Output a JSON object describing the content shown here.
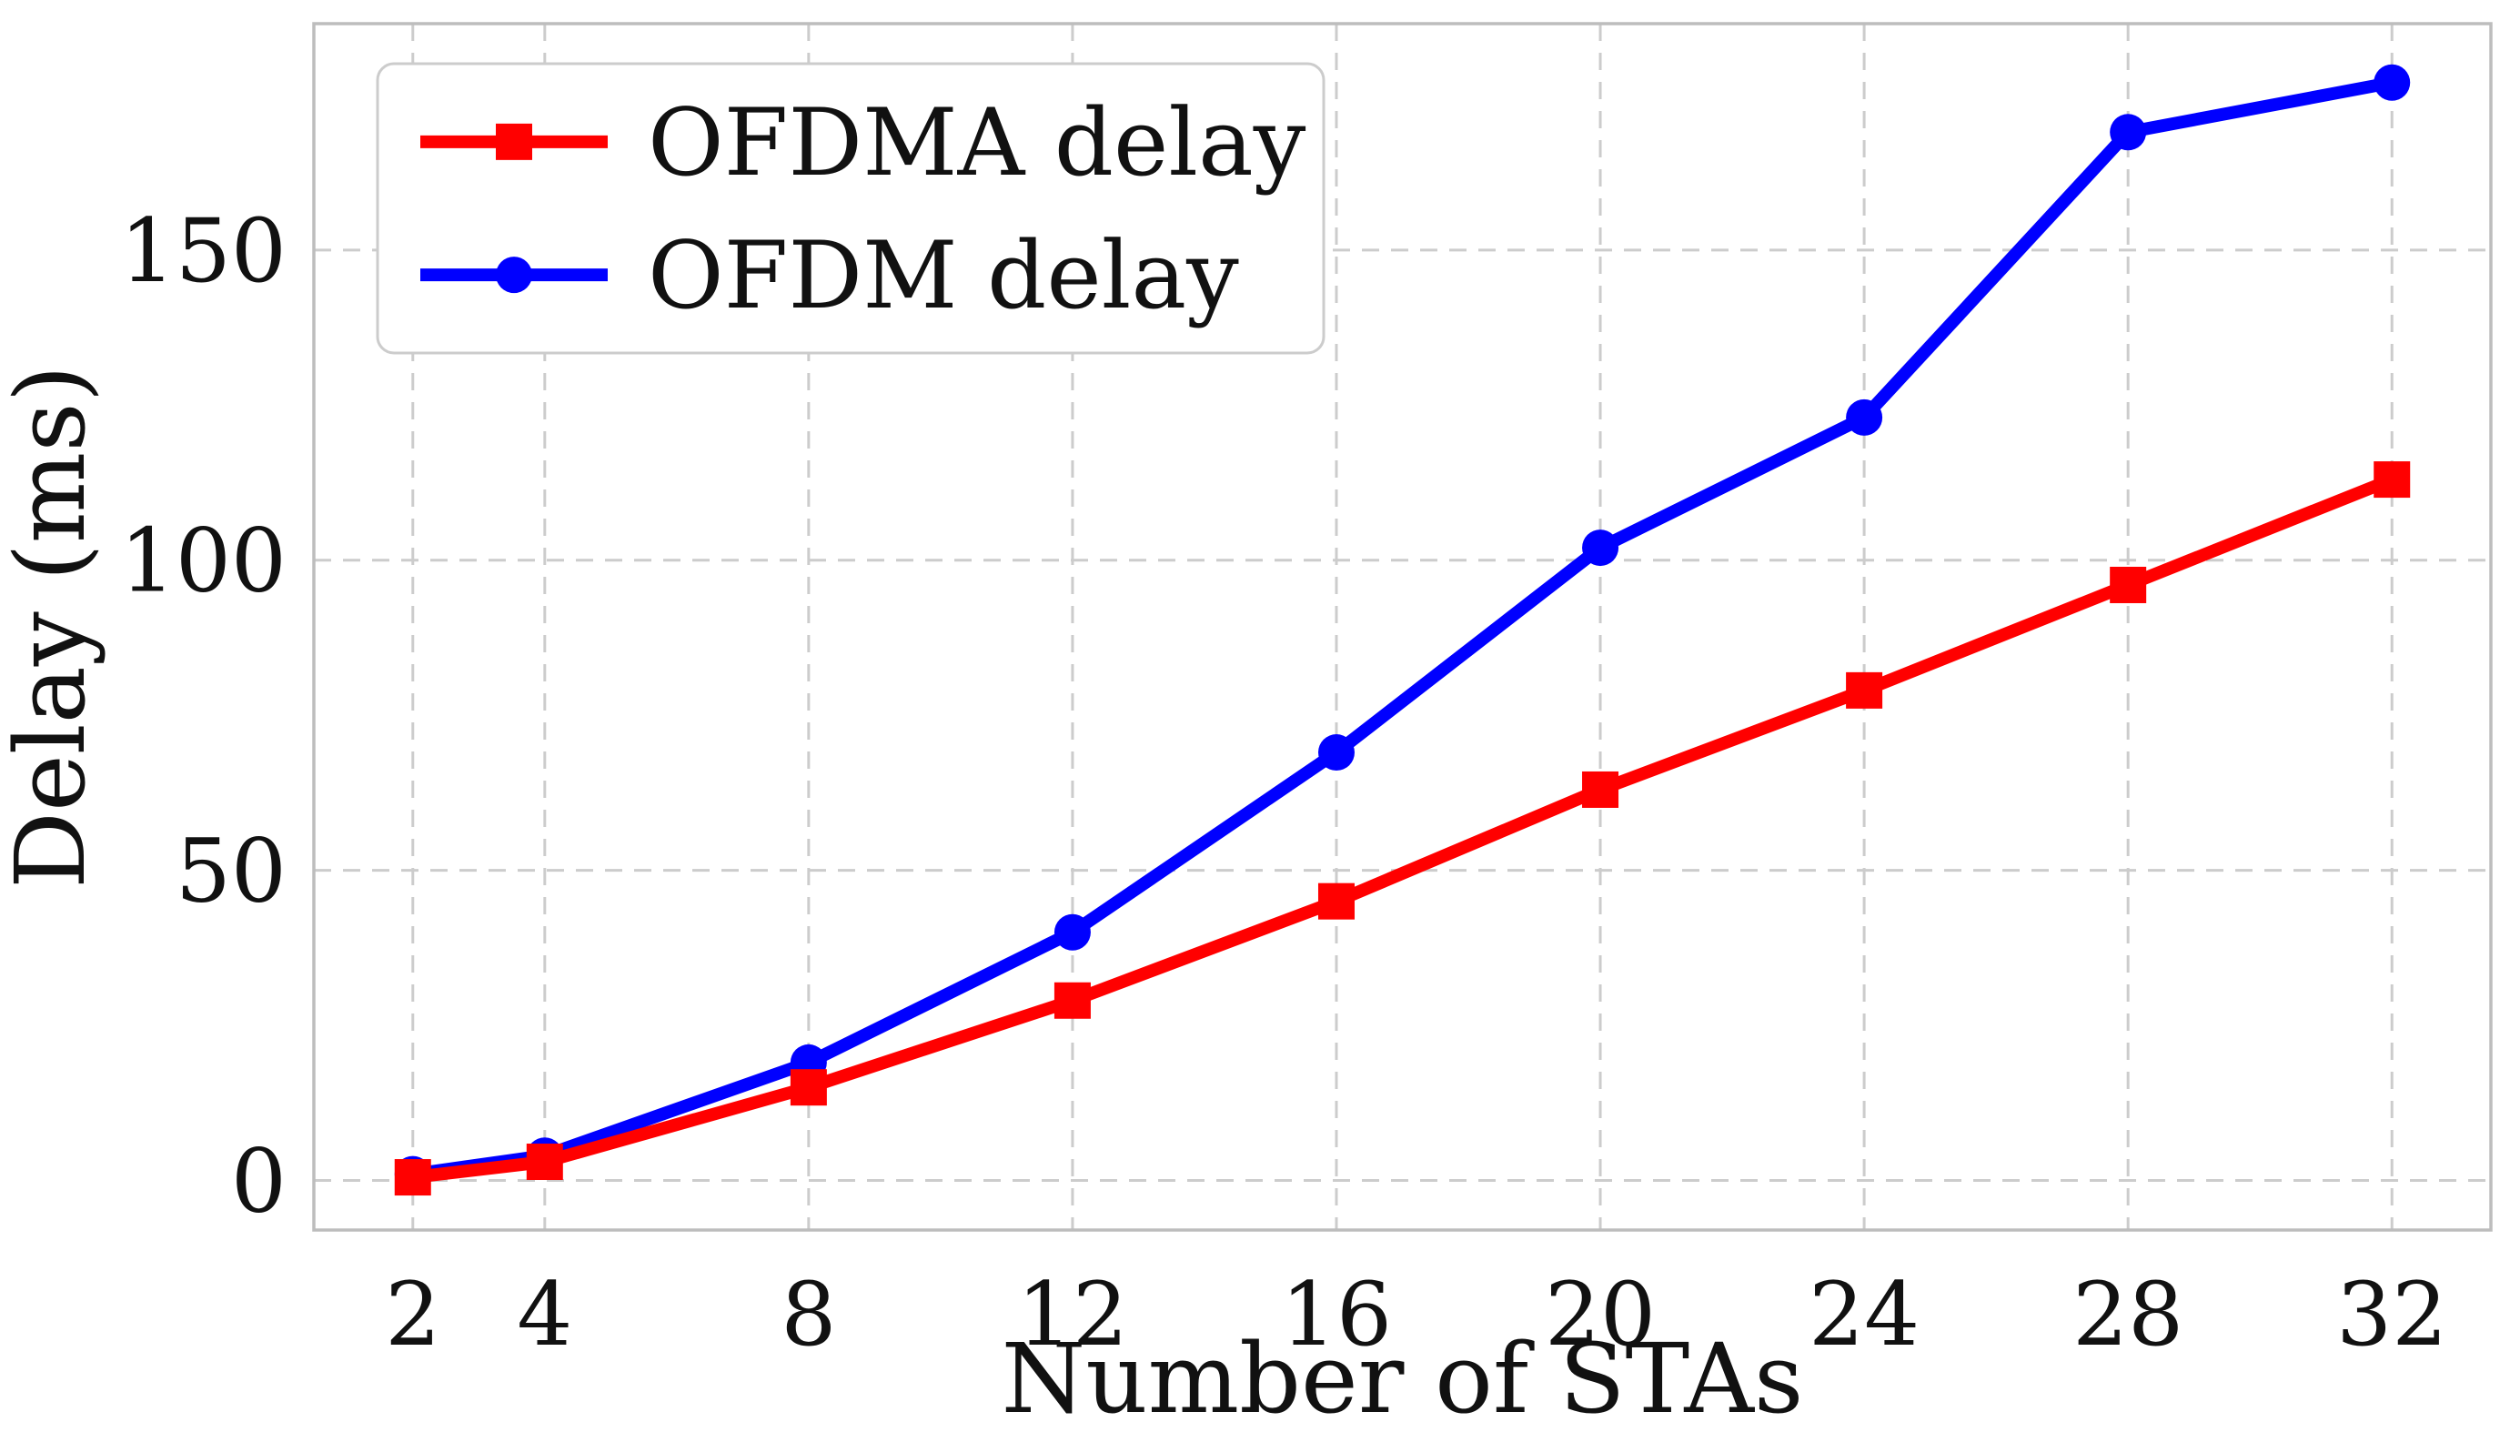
{
  "chart_data": {
    "type": "line",
    "x": [
      2,
      4,
      8,
      12,
      16,
      20,
      24,
      28,
      32
    ],
    "series": [
      {
        "name": "OFDMA delay",
        "color": "#ff0000",
        "marker": "square",
        "values": [
          0.5,
          3,
          15,
          29,
          45,
          63,
          79,
          96,
          113
        ]
      },
      {
        "name": "OFDM delay",
        "color": "#0000ff",
        "marker": "circle",
        "values": [
          1,
          4,
          19,
          40,
          69,
          102,
          123,
          169,
          177
        ]
      }
    ],
    "title": "",
    "xlabel": "Number of STAs",
    "ylabel": "Delay (ms)",
    "xticks": [
      2,
      4,
      8,
      12,
      16,
      20,
      24,
      28,
      32
    ],
    "yticks": [
      0,
      50,
      100,
      150
    ],
    "xlim": [
      0.5,
      33.5
    ],
    "ylim": [
      -8,
      186.5
    ],
    "grid": true,
    "grid_style": "dashed",
    "grid_color": "#cccccc",
    "frame_color": "#bdbdbd",
    "text_color": "#111111",
    "background_color": "#ffffff",
    "legend_position": "upper left"
  }
}
